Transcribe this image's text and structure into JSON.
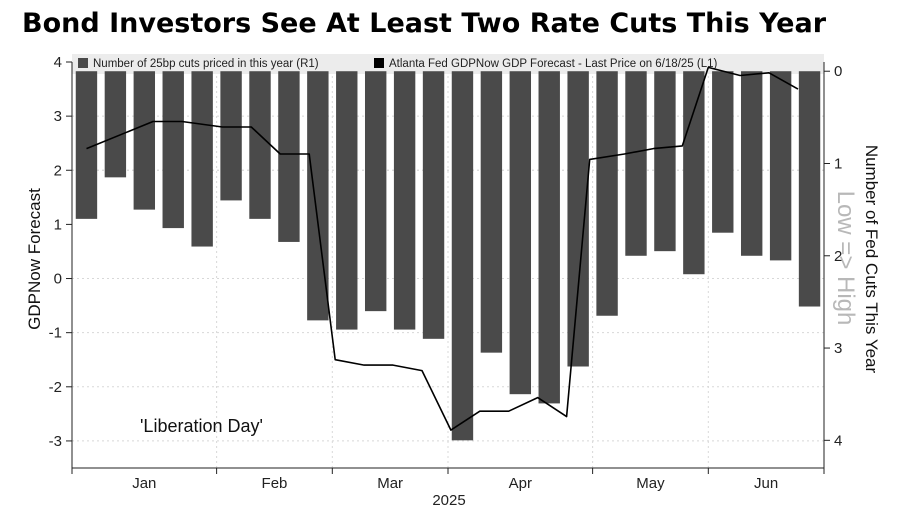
{
  "title": "Bond Investors See At Least Two Rate Cuts This Year",
  "chart_data": {
    "type": "bar+line",
    "legend": {
      "placement": "top",
      "entries": [
        {
          "name": "Number of 25bp cuts priced in this year (R1)",
          "color": "#4a4a4a"
        },
        {
          "name": "Atlanta Fed GDPNow GDP Forecast - Last Price on 6/18/25 (L1)",
          "color": "#000000"
        }
      ]
    },
    "x_axis": {
      "months": [
        "Jan",
        "Feb",
        "Mar",
        "Apr",
        "May",
        "Jun"
      ],
      "year_label": "2025",
      "period_count": 26
    },
    "left_axis": {
      "label": "GDPNow Forecast",
      "range": [
        -3.5,
        4
      ],
      "ticks": [
        4,
        3,
        2,
        1,
        0,
        -1,
        -2,
        -3
      ]
    },
    "right_axis": {
      "label": "Number of Fed Cuts This Year",
      "range": [
        -0.1,
        4.3
      ],
      "ticks": [
        0,
        1,
        2,
        3,
        4
      ],
      "inverted": true
    },
    "annotations": {
      "low_high": "Low => High",
      "event": "'Liberation Day'"
    },
    "bar_color": "#4a4a4a",
    "line_color": "#000000",
    "bars": [
      1.6,
      1.15,
      1.5,
      1.7,
      1.9,
      1.4,
      1.6,
      1.85,
      2.7,
      2.8,
      2.6,
      2.8,
      2.9,
      4.0,
      3.05,
      3.5,
      3.6,
      3.2,
      2.65,
      2.0,
      1.95,
      2.2,
      1.75,
      2.0,
      2.05,
      2.55
    ],
    "line": [
      {
        "t": 0.0,
        "v": 2.4
      },
      {
        "t": 2.3,
        "v": 2.9
      },
      {
        "t": 3.3,
        "v": 2.9
      },
      {
        "t": 4.7,
        "v": 2.8
      },
      {
        "t": 5.7,
        "v": 2.8
      },
      {
        "t": 6.7,
        "v": 2.3
      },
      {
        "t": 7.7,
        "v": 2.3
      },
      {
        "t": 8.6,
        "v": -1.5
      },
      {
        "t": 9.6,
        "v": -1.6
      },
      {
        "t": 10.6,
        "v": -1.6
      },
      {
        "t": 11.6,
        "v": -1.7
      },
      {
        "t": 12.6,
        "v": -2.8
      },
      {
        "t": 13.6,
        "v": -2.45
      },
      {
        "t": 14.6,
        "v": -2.45
      },
      {
        "t": 15.6,
        "v": -2.2
      },
      {
        "t": 16.6,
        "v": -2.55
      },
      {
        "t": 17.4,
        "v": 2.2
      },
      {
        "t": 18.6,
        "v": 2.3
      },
      {
        "t": 19.6,
        "v": 2.4
      },
      {
        "t": 20.6,
        "v": 2.45
      },
      {
        "t": 21.5,
        "v": 3.9
      },
      {
        "t": 22.6,
        "v": 3.75
      },
      {
        "t": 23.6,
        "v": 3.8
      },
      {
        "t": 24.6,
        "v": 3.5
      }
    ]
  }
}
